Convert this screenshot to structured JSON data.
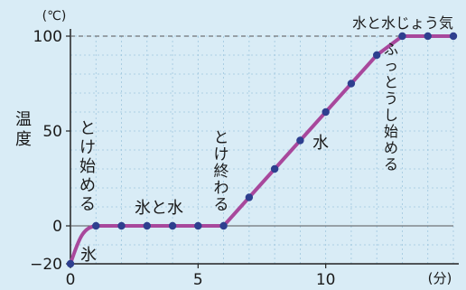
{
  "chart_data": {
    "type": "line",
    "title": "",
    "ylabel_chars": [
      "温",
      "度"
    ],
    "xunit": "(分)",
    "yunit": "(℃)",
    "xlim": [
      0,
      15
    ],
    "ylim": [
      -20,
      100
    ],
    "xticks": [
      0,
      5,
      10
    ],
    "yticks": [
      -20,
      0,
      50,
      100
    ],
    "grid": true,
    "series": [
      {
        "x": [
          0,
          1,
          2,
          3,
          4,
          5,
          6,
          7,
          8,
          9,
          10,
          11,
          12,
          13,
          14,
          15
        ],
        "y": [
          -20,
          0,
          0,
          0,
          0,
          0,
          0,
          15,
          30,
          45,
          60,
          75,
          90,
          100,
          100,
          100
        ],
        "color": "#a8489c",
        "marker_color": "#2e3f8f"
      }
    ],
    "annotations": {
      "ice": "氷",
      "start_melting": [
        "と",
        "け",
        "始",
        "め",
        "る"
      ],
      "ice_and_water": "氷と水",
      "finish_melting": [
        "と",
        "け",
        "終",
        "わ",
        "る"
      ],
      "water": "水",
      "start_boiling": [
        "ふ",
        "っ",
        "と",
        "う",
        "し",
        "始",
        "め",
        "る"
      ],
      "water_and_vapor": "水と水じょう気"
    }
  }
}
